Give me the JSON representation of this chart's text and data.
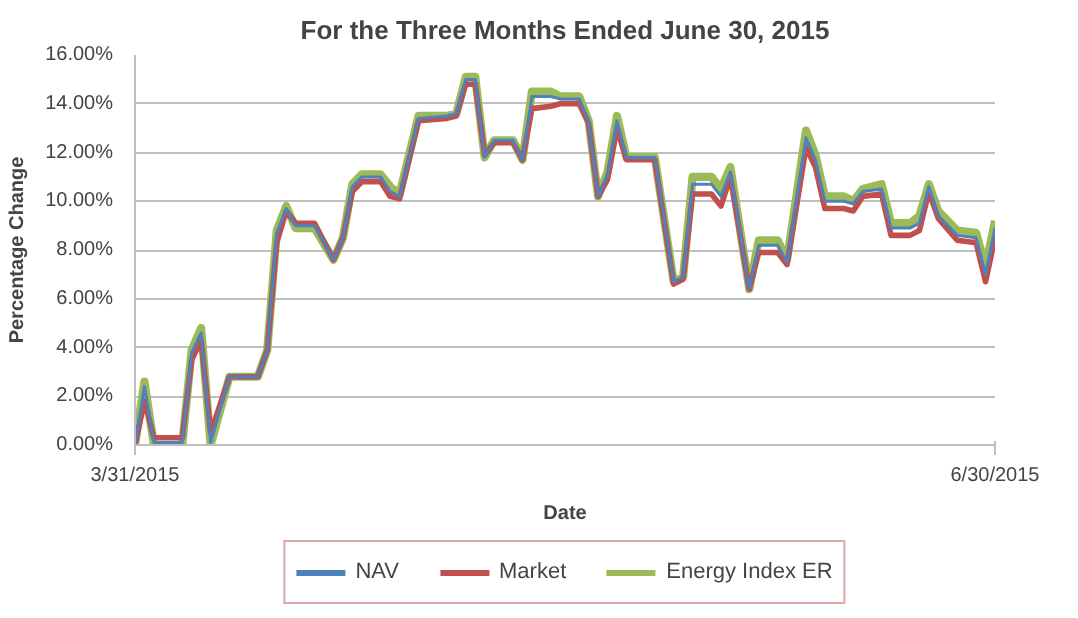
{
  "chart_data": {
    "type": "line",
    "title": "For the Three Months Ended June 30, 2015",
    "xlabel": "Date",
    "ylabel": "Percentage Change",
    "x": [
      "2015-03-31",
      "2015-04-01",
      "2015-04-02",
      "2015-04-05",
      "2015-04-06",
      "2015-04-07",
      "2015-04-08",
      "2015-04-10",
      "2015-04-13",
      "2015-04-14",
      "2015-04-15",
      "2015-04-16",
      "2015-04-17",
      "2015-04-19",
      "2015-04-21",
      "2015-04-22",
      "2015-04-23",
      "2015-04-24",
      "2015-04-26",
      "2015-04-27",
      "2015-04-28",
      "2015-04-30",
      "2015-05-03",
      "2015-05-04",
      "2015-05-05",
      "2015-05-06",
      "2015-05-07",
      "2015-05-08",
      "2015-05-10",
      "2015-05-11",
      "2015-05-12",
      "2015-05-14",
      "2015-05-15",
      "2015-05-17",
      "2015-05-18",
      "2015-05-19",
      "2015-05-20",
      "2015-05-21",
      "2015-05-22",
      "2015-05-25",
      "2015-05-27",
      "2015-05-28",
      "2015-05-29",
      "2015-05-31",
      "2015-06-01",
      "2015-06-02",
      "2015-06-04",
      "2015-06-05",
      "2015-06-07",
      "2015-06-08",
      "2015-06-10",
      "2015-06-11",
      "2015-06-12",
      "2015-06-14",
      "2015-06-15",
      "2015-06-16",
      "2015-06-18",
      "2015-06-19",
      "2015-06-21",
      "2015-06-22",
      "2015-06-23",
      "2015-06-24",
      "2015-06-26",
      "2015-06-28",
      "2015-06-29",
      "2015-06-30"
    ],
    "series": [
      {
        "name": "NAV",
        "color": "#4f81bd",
        "values": [
          0,
          2.4,
          0.1,
          0.1,
          3.8,
          4.6,
          0.1,
          2.8,
          2.8,
          3.9,
          8.7,
          9.7,
          9.0,
          9.0,
          7.6,
          8.5,
          10.6,
          11.0,
          11.0,
          10.4,
          10.2,
          13.4,
          13.5,
          13.6,
          15.0,
          15.0,
          11.8,
          12.5,
          12.5,
          11.7,
          14.3,
          14.3,
          14.2,
          14.2,
          13.3,
          10.2,
          11.1,
          13.3,
          11.8,
          11.8,
          6.7,
          6.9,
          10.7,
          10.7,
          10.2,
          11.2,
          6.4,
          8.2,
          8.2,
          7.5,
          12.6,
          11.7,
          10.0,
          10.0,
          9.9,
          10.4,
          10.5,
          8.9,
          8.9,
          9.1,
          10.6,
          9.4,
          8.6,
          8.5,
          7.0,
          8.9
        ]
      },
      {
        "name": "Market",
        "color": "#c0504d",
        "values": [
          0,
          1.8,
          0.3,
          0.3,
          3.5,
          4.3,
          0.5,
          2.8,
          2.8,
          3.9,
          8.3,
          9.6,
          9.1,
          9.1,
          7.6,
          8.5,
          10.4,
          10.8,
          10.8,
          10.2,
          10.1,
          13.3,
          13.4,
          13.5,
          14.8,
          14.8,
          11.9,
          12.4,
          12.4,
          11.7,
          13.8,
          13.9,
          14.0,
          14.0,
          13.2,
          10.2,
          10.9,
          13.0,
          11.7,
          11.7,
          6.6,
          6.8,
          10.3,
          10.3,
          9.8,
          11.0,
          6.4,
          7.9,
          7.9,
          7.4,
          12.2,
          11.4,
          9.7,
          9.7,
          9.6,
          10.2,
          10.3,
          8.6,
          8.6,
          8.8,
          10.4,
          9.3,
          8.4,
          8.3,
          6.7,
          8.5
        ]
      },
      {
        "name": "Energy Index ER",
        "color": "#9bbb59",
        "values": [
          0,
          2.6,
          0.0,
          0.0,
          3.9,
          4.8,
          0.0,
          2.8,
          2.8,
          3.9,
          8.8,
          9.8,
          8.9,
          8.9,
          7.6,
          8.5,
          10.7,
          11.1,
          11.1,
          10.6,
          10.3,
          13.5,
          13.5,
          13.6,
          15.1,
          15.1,
          11.8,
          12.5,
          12.5,
          11.7,
          14.5,
          14.5,
          14.3,
          14.3,
          13.3,
          10.2,
          11.2,
          13.5,
          11.8,
          11.8,
          6.7,
          6.9,
          11.0,
          11.0,
          10.5,
          11.4,
          6.4,
          8.4,
          8.4,
          7.6,
          12.9,
          11.9,
          10.2,
          10.2,
          10.0,
          10.5,
          10.7,
          9.1,
          9.1,
          9.4,
          10.7,
          9.6,
          8.8,
          8.7,
          7.3,
          9.2
        ]
      }
    ],
    "xlim": [
      "2015-03-31",
      "2015-06-30"
    ],
    "xticks": [
      {
        "value": "2015-03-31",
        "label": "3/31/2015"
      },
      {
        "value": "2015-06-30",
        "label": "6/30/2015"
      }
    ],
    "ylim": [
      0,
      16
    ],
    "yticks": [
      {
        "value": 0,
        "label": "0.00%"
      },
      {
        "value": 2,
        "label": "2.00%"
      },
      {
        "value": 4,
        "label": "4.00%"
      },
      {
        "value": 6,
        "label": "6.00%"
      },
      {
        "value": 8,
        "label": "8.00%"
      },
      {
        "value": 10,
        "label": "10.00%"
      },
      {
        "value": 12,
        "label": "12.00%"
      },
      {
        "value": 14,
        "label": "14.00%"
      },
      {
        "value": 16,
        "label": "16.00%"
      }
    ],
    "grid": "y",
    "legend": "bottom",
    "line_style": "solid"
  }
}
